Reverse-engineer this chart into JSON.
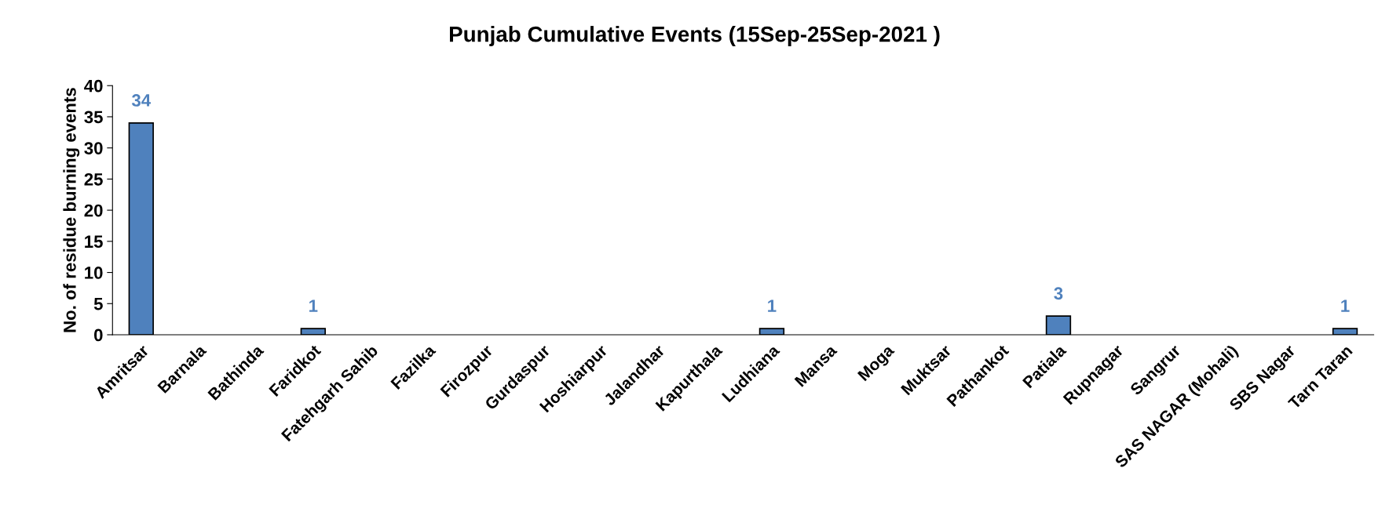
{
  "chart_data": {
    "type": "bar",
    "title": "Punjab Cumulative Events (15Sep-25Sep-2021 )",
    "ylabel": "No. of residue burning events",
    "categories": [
      "Amritsar",
      "Barnala",
      "Bathinda",
      "Faridkot",
      "Fatehgarh Sahib",
      "Fazilka",
      "Firozpur",
      "Gurdaspur",
      "Hoshiarpur",
      "Jalandhar",
      "Kapurthala",
      "Ludhiana",
      "Mansa",
      "Moga",
      "Muktsar",
      "Pathankot",
      "Patiala",
      "Rupnagar",
      "Sangrur",
      "SAS NAGAR (Mohali)",
      "SBS Nagar",
      "Tarn Taran"
    ],
    "values": [
      34,
      0,
      0,
      1,
      0,
      0,
      0,
      0,
      0,
      0,
      0,
      1,
      0,
      0,
      0,
      0,
      3,
      0,
      0,
      0,
      0,
      1
    ],
    "value_labels": [
      "34",
      null,
      null,
      "1",
      null,
      null,
      null,
      null,
      null,
      null,
      null,
      "1",
      null,
      null,
      null,
      null,
      "3",
      null,
      null,
      null,
      null,
      "1"
    ],
    "color": "#4f81bd",
    "ylim": [
      0,
      40
    ],
    "yticks": [
      0,
      5,
      10,
      15,
      20,
      25,
      30,
      35,
      40
    ],
    "grid": false,
    "legend": false
  }
}
